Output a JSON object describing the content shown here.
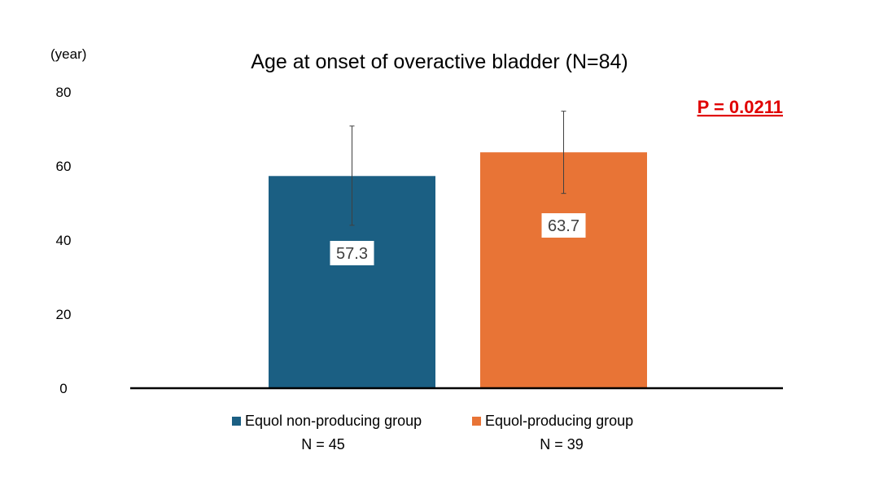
{
  "chart_data": {
    "type": "bar",
    "title": "Age at onset of overactive bladder (N=84)",
    "unit_label": "(year)",
    "ylim": [
      0,
      80
    ],
    "yticks": [
      0,
      20,
      40,
      60,
      80
    ],
    "grid": false,
    "legend_position": "bottom",
    "categories": [
      "Equol non-producing group",
      "Equol-producing group"
    ],
    "series": [
      {
        "name": "Age at onset",
        "values": [
          57.3,
          63.7
        ],
        "data_labels": [
          "57.3",
          "63.7"
        ],
        "error_upper": [
          70.8,
          74.8
        ],
        "error_lower": [
          44.0,
          52.6
        ],
        "colors": [
          "#1b5f83",
          "#e87436"
        ]
      }
    ],
    "sample_sizes": [
      "N = 45",
      "N = 39"
    ],
    "annotation": "P = 0.0211",
    "annotation_color": "#e00000"
  }
}
